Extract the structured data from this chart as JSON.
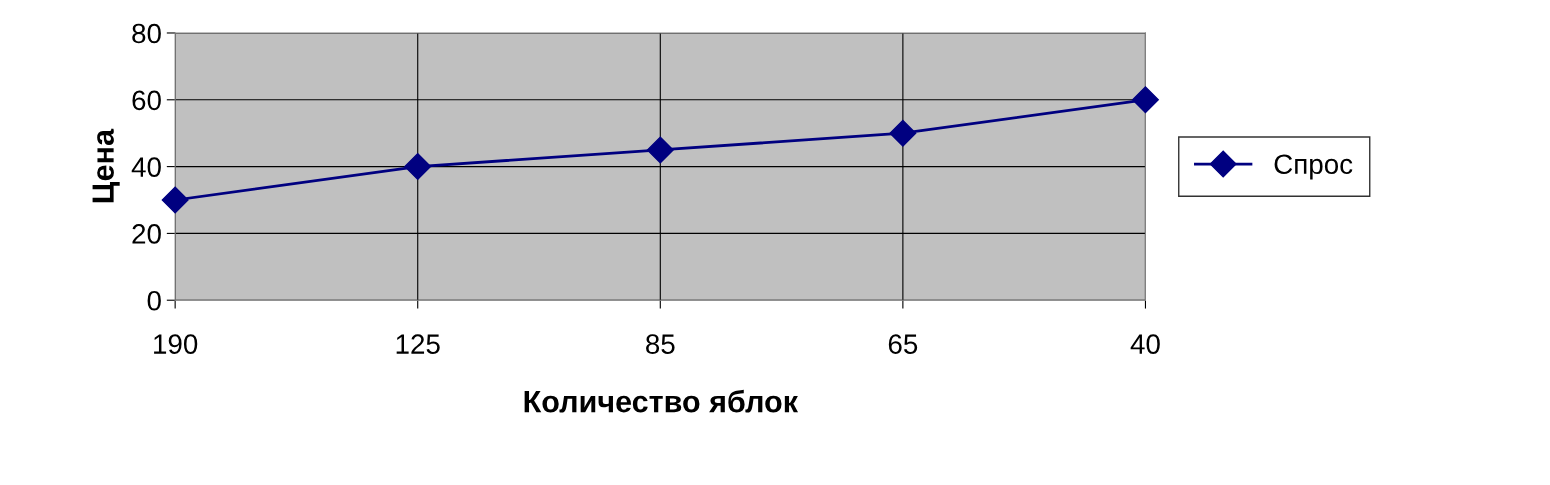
{
  "chart_data": {
    "type": "line",
    "xlabel": "Количество яблок",
    "ylabel": "Цена",
    "categories": [
      "190",
      "125",
      "85",
      "65",
      "40"
    ],
    "series": [
      {
        "name": "Спрос",
        "color": "#000080",
        "values": [
          30,
          40,
          45,
          50,
          60
        ]
      }
    ],
    "ylim": [
      0,
      80
    ],
    "yticks": [
      0,
      20,
      40,
      60,
      80
    ],
    "grid": true,
    "legend": "right",
    "marker": "diamond",
    "line_style": "solid"
  }
}
